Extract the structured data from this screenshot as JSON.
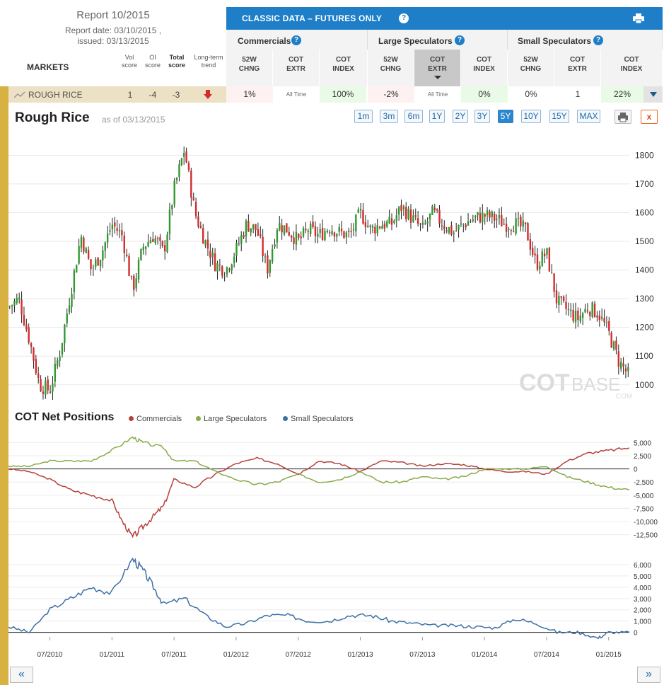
{
  "report": {
    "title": "Report 10/2015",
    "report_date": "Report date: 03/10/2015 ,",
    "issued": "issued: 03/13/2015"
  },
  "markets_header": {
    "label": "MARKETS",
    "vol": [
      "Vol",
      "score"
    ],
    "oi": [
      "OI",
      "score"
    ],
    "total": [
      "Total",
      "score"
    ],
    "trend": [
      "Long-term",
      "trend"
    ]
  },
  "classic": {
    "title": "CLASSIC DATA – FUTURES ONLY",
    "help": "?",
    "groups": [
      "Commercials",
      "Large Speculators",
      "Small Speculators"
    ],
    "sub_columns": [
      [
        "52W",
        "CHNG"
      ],
      [
        "COT",
        "EXTR"
      ],
      [
        "COT",
        "INDEX"
      ]
    ]
  },
  "market_row": {
    "name": "ROUGH RICE",
    "vol_score": "1",
    "oi_score": "-4",
    "total_score": "-3",
    "trend_icon": "down-arrow-icon",
    "cells": [
      "1%",
      "All Time",
      "100%",
      "-2%",
      "All Time",
      "0%",
      "0%",
      "1",
      "22%"
    ]
  },
  "chart_header": {
    "title": "Rough Rice",
    "as_of": "as of 03/13/2015",
    "ranges": [
      "1m",
      "3m",
      "6m",
      "1Y",
      "2Y",
      "3Y",
      "5Y",
      "10Y",
      "15Y",
      "MAX"
    ],
    "selected_range": "5Y",
    "close": "x"
  },
  "watermark": {
    "cot": "COT",
    "base": "BASE",
    "com": ".COM"
  },
  "cot_header": {
    "title": "COT Net Positions",
    "legend": [
      "Commercials",
      "Large Speculators",
      "Small Speculators"
    ]
  },
  "colors": {
    "commercials": "#b5403c",
    "large": "#8aab4a",
    "small": "#3e6fa6",
    "up": "#2f9a2f",
    "down": "#d52b2b",
    "accent": "#1e7ec8",
    "gold": "#d7b242"
  },
  "nav": {
    "prev": "«",
    "next": "»"
  },
  "chart_data": [
    {
      "type": "candlestick",
      "title": "Rough Rice",
      "ylim": [
        960,
        1860
      ],
      "y_ticks": [
        1000,
        1100,
        1200,
        1300,
        1400,
        1500,
        1600,
        1700,
        1800
      ],
      "x_ticks": [
        "07/2010",
        "01/2011",
        "07/2011",
        "01/2012",
        "07/2012",
        "01/2013",
        "07/2013",
        "01/2014",
        "07/2014",
        "01/2015"
      ],
      "x_range": [
        "2010-03",
        "2015-03"
      ],
      "approx_close_path": [
        [
          "2010-03",
          1270
        ],
        [
          "2010-04",
          1300
        ],
        [
          "2010-05",
          1160
        ],
        [
          "2010-06",
          1000
        ],
        [
          "2010-07",
          980
        ],
        [
          "2010-08",
          1120
        ],
        [
          "2010-09",
          1320
        ],
        [
          "2010-10",
          1520
        ],
        [
          "2010-11",
          1400
        ],
        [
          "2010-12",
          1460
        ],
        [
          "2011-01",
          1560
        ],
        [
          "2011-02",
          1520
        ],
        [
          "2011-03",
          1330
        ],
        [
          "2011-04",
          1480
        ],
        [
          "2011-05",
          1520
        ],
        [
          "2011-06",
          1460
        ],
        [
          "2011-07",
          1680
        ],
        [
          "2011-08",
          1820
        ],
        [
          "2011-09",
          1600
        ],
        [
          "2011-10",
          1500
        ],
        [
          "2011-11",
          1420
        ],
        [
          "2011-12",
          1400
        ],
        [
          "2012-01",
          1470
        ],
        [
          "2012-02",
          1560
        ],
        [
          "2012-03",
          1540
        ],
        [
          "2012-04",
          1400
        ],
        [
          "2012-05",
          1560
        ],
        [
          "2012-06",
          1540
        ],
        [
          "2012-07",
          1500
        ],
        [
          "2012-08",
          1540
        ],
        [
          "2012-09",
          1520
        ],
        [
          "2012-10",
          1550
        ],
        [
          "2012-11",
          1530
        ],
        [
          "2012-12",
          1520
        ],
        [
          "2013-01",
          1600
        ],
        [
          "2013-02",
          1540
        ],
        [
          "2013-03",
          1560
        ],
        [
          "2013-04",
          1560
        ],
        [
          "2013-05",
          1620
        ],
        [
          "2013-06",
          1580
        ],
        [
          "2013-07",
          1540
        ],
        [
          "2013-08",
          1600
        ],
        [
          "2013-09",
          1560
        ],
        [
          "2013-10",
          1530
        ],
        [
          "2013-11",
          1560
        ],
        [
          "2013-12",
          1580
        ],
        [
          "2014-01",
          1590
        ],
        [
          "2014-02",
          1580
        ],
        [
          "2014-03",
          1560
        ],
        [
          "2014-04",
          1560
        ],
        [
          "2014-05",
          1540
        ],
        [
          "2014-06",
          1420
        ],
        [
          "2014-07",
          1460
        ],
        [
          "2014-08",
          1290
        ],
        [
          "2014-09",
          1260
        ],
        [
          "2014-10",
          1230
        ],
        [
          "2014-11",
          1270
        ],
        [
          "2014-12",
          1250
        ],
        [
          "2015-01",
          1180
        ],
        [
          "2015-02",
          1080
        ],
        [
          "2015-03",
          1030
        ]
      ]
    },
    {
      "type": "line",
      "title": "COT Net Positions",
      "ylim": [
        -13500,
        6000
      ],
      "y_ticks": [
        5000,
        2500,
        0,
        -2500,
        -5000,
        -7500,
        -10000,
        -12500
      ],
      "series": [
        {
          "name": "Commercials",
          "values": [
            [
              "2010-03",
              0
            ],
            [
              "2010-05",
              -500
            ],
            [
              "2010-07",
              -2000
            ],
            [
              "2010-09",
              -4000
            ],
            [
              "2010-11",
              -5000
            ],
            [
              "2011-01",
              -6000
            ],
            [
              "2011-02",
              -10000
            ],
            [
              "2011-03",
              -13000
            ],
            [
              "2011-04",
              -11000
            ],
            [
              "2011-05",
              -9000
            ],
            [
              "2011-06",
              -7000
            ],
            [
              "2011-07",
              -2000
            ],
            [
              "2011-09",
              -3500
            ],
            [
              "2011-11",
              -1000
            ],
            [
              "2012-01",
              1000
            ],
            [
              "2012-03",
              2000
            ],
            [
              "2012-05",
              1000
            ],
            [
              "2012-07",
              -1000
            ],
            [
              "2012-09",
              1500
            ],
            [
              "2012-11",
              1000
            ],
            [
              "2013-01",
              -500
            ],
            [
              "2013-03",
              1500
            ],
            [
              "2013-05",
              1200
            ],
            [
              "2013-07",
              500
            ],
            [
              "2013-09",
              1000
            ],
            [
              "2013-11",
              800
            ],
            [
              "2014-01",
              0
            ],
            [
              "2014-03",
              -500
            ],
            [
              "2014-05",
              -500
            ],
            [
              "2014-07",
              -1000
            ],
            [
              "2014-09",
              1500
            ],
            [
              "2014-11",
              3000
            ],
            [
              "2015-01",
              3500
            ],
            [
              "2015-03",
              4000
            ]
          ]
        },
        {
          "name": "Large Speculators",
          "values": [
            [
              "2010-03",
              500
            ],
            [
              "2010-05",
              500
            ],
            [
              "2010-07",
              1500
            ],
            [
              "2010-09",
              1500
            ],
            [
              "2010-11",
              1500
            ],
            [
              "2011-01",
              3500
            ],
            [
              "2011-03",
              6000
            ],
            [
              "2011-04",
              5000
            ],
            [
              "2011-06",
              4000
            ],
            [
              "2011-07",
              1500
            ],
            [
              "2011-09",
              1500
            ],
            [
              "2011-11",
              -500
            ],
            [
              "2012-01",
              -2000
            ],
            [
              "2012-03",
              -3000
            ],
            [
              "2012-05",
              -2500
            ],
            [
              "2012-07",
              -1000
            ],
            [
              "2012-09",
              -2500
            ],
            [
              "2012-11",
              -2000
            ],
            [
              "2013-01",
              -500
            ],
            [
              "2013-03",
              -2500
            ],
            [
              "2013-05",
              -2500
            ],
            [
              "2013-07",
              -1500
            ],
            [
              "2013-09",
              -2000
            ],
            [
              "2013-11",
              -1500
            ],
            [
              "2014-01",
              0
            ],
            [
              "2014-03",
              0
            ],
            [
              "2014-05",
              0
            ],
            [
              "2014-07",
              500
            ],
            [
              "2014-09",
              -1500
            ],
            [
              "2014-11",
              -2500
            ],
            [
              "2015-01",
              -3500
            ],
            [
              "2015-03",
              -4000
            ]
          ]
        },
        {
          "name": "Small Speculators",
          "values": [
            [
              "2010-03",
              500
            ],
            [
              "2010-05",
              0
            ],
            [
              "2010-07",
              2000
            ],
            [
              "2010-09",
              3000
            ],
            [
              "2010-11",
              4000
            ],
            [
              "2011-01",
              3500
            ],
            [
              "2011-03",
              6500
            ],
            [
              "2011-04",
              5500
            ],
            [
              "2011-05",
              4000
            ],
            [
              "2011-06",
              2500
            ],
            [
              "2011-08",
              3000
            ],
            [
              "2011-10",
              1500
            ],
            [
              "2011-12",
              500
            ],
            [
              "2012-02",
              800
            ],
            [
              "2012-04",
              1500
            ],
            [
              "2012-06",
              1500
            ],
            [
              "2012-08",
              1000
            ],
            [
              "2012-10",
              1000
            ],
            [
              "2012-12",
              1500
            ],
            [
              "2013-02",
              1500
            ],
            [
              "2013-04",
              1000
            ],
            [
              "2013-06",
              800
            ],
            [
              "2013-08",
              600
            ],
            [
              "2013-10",
              600
            ],
            [
              "2013-12",
              500
            ],
            [
              "2014-02",
              400
            ],
            [
              "2014-04",
              1200
            ],
            [
              "2014-06",
              800
            ],
            [
              "2014-08",
              0
            ],
            [
              "2014-10",
              0
            ],
            [
              "2014-12",
              -500
            ],
            [
              "2015-01",
              0
            ],
            [
              "2015-03",
              0
            ]
          ]
        }
      ]
    },
    {
      "type": "line",
      "title": "Small Speculators",
      "ylim": [
        -400,
        7000
      ],
      "y_ticks": [
        6000,
        5000,
        4000,
        3000,
        2000,
        1000,
        0
      ]
    }
  ]
}
